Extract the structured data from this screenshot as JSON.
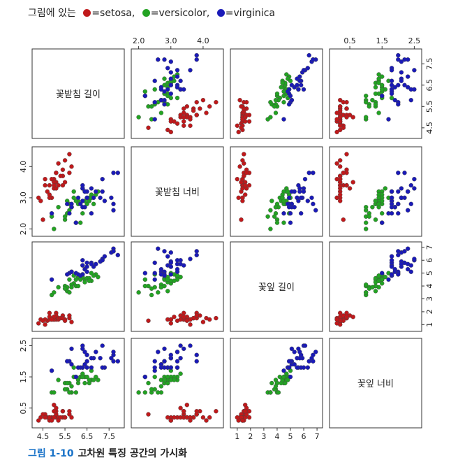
{
  "legend": {
    "prefix": "그림에 있는",
    "items": [
      {
        "label": "=setosa,",
        "color": "#c0191b"
      },
      {
        "label": "=versicolor,",
        "color": "#23a323"
      },
      {
        "label": "=virginica",
        "color": "#1a1ab8"
      }
    ]
  },
  "caption": {
    "number": "그림 1-10",
    "text": "고차원 특징 공간의 가시화"
  },
  "chart_data": {
    "type": "scatter",
    "title": "",
    "variables": [
      {
        "name": "꽃받침 길이",
        "range": [
          4.2,
          8.0
        ],
        "ticks": [
          "4.5",
          "5.5",
          "6.5",
          "7.5"
        ]
      },
      {
        "name": "꽃받침 너비",
        "range": [
          1.9,
          4.5
        ],
        "ticks": [
          "2.0",
          "3.0",
          "4.0"
        ]
      },
      {
        "name": "꽃잎 길이",
        "range": [
          0.8,
          7.1
        ],
        "ticks": [
          "1",
          "2",
          "3",
          "4",
          "5",
          "6",
          "7"
        ]
      },
      {
        "name": "꽃잎 너비",
        "range": [
          0.0,
          2.6
        ],
        "ticks": [
          "0.5",
          "1.5",
          "2.5"
        ]
      }
    ],
    "series": [
      {
        "name": "setosa",
        "color": "#c0191b",
        "points": [
          [
            5.1,
            3.5,
            1.4,
            0.2
          ],
          [
            4.9,
            3.0,
            1.4,
            0.2
          ],
          [
            4.7,
            3.2,
            1.3,
            0.2
          ],
          [
            5.0,
            3.6,
            1.4,
            0.2
          ],
          [
            5.4,
            3.9,
            1.7,
            0.4
          ],
          [
            4.6,
            3.4,
            1.4,
            0.3
          ],
          [
            4.4,
            2.9,
            1.4,
            0.2
          ],
          [
            5.4,
            3.7,
            1.5,
            0.2
          ],
          [
            4.8,
            3.0,
            1.4,
            0.1
          ],
          [
            5.8,
            4.0,
            1.2,
            0.2
          ],
          [
            5.7,
            4.4,
            1.5,
            0.4
          ],
          [
            5.1,
            3.8,
            1.5,
            0.3
          ],
          [
            5.2,
            3.4,
            1.4,
            0.2
          ],
          [
            5.2,
            4.1,
            1.5,
            0.1
          ],
          [
            5.5,
            4.2,
            1.4,
            0.2
          ],
          [
            4.5,
            2.3,
            1.3,
            0.3
          ],
          [
            5.3,
            3.7,
            1.5,
            0.2
          ],
          [
            5.0,
            3.3,
            1.4,
            0.2
          ],
          [
            4.8,
            3.4,
            1.9,
            0.2
          ],
          [
            5.1,
            3.8,
            1.9,
            0.4
          ],
          [
            4.3,
            3.0,
            1.1,
            0.1
          ],
          [
            5.0,
            3.5,
            1.6,
            0.6
          ],
          [
            4.6,
            3.6,
            1.0,
            0.2
          ],
          [
            5.1,
            3.3,
            1.7,
            0.5
          ],
          [
            4.8,
            3.1,
            1.6,
            0.2
          ],
          [
            5.7,
            3.8,
            1.7,
            0.3
          ],
          [
            5.4,
            3.4,
            1.5,
            0.4
          ],
          [
            5.0,
            3.4,
            1.6,
            0.4
          ],
          [
            5.5,
            3.5,
            1.3,
            0.2
          ],
          [
            4.9,
            3.6,
            1.4,
            0.1
          ]
        ]
      },
      {
        "name": "versicolor",
        "color": "#23a323",
        "points": [
          [
            7.0,
            3.2,
            4.7,
            1.4
          ],
          [
            6.4,
            3.2,
            4.5,
            1.5
          ],
          [
            6.9,
            3.1,
            4.9,
            1.5
          ],
          [
            5.5,
            2.3,
            4.0,
            1.3
          ],
          [
            6.5,
            2.8,
            4.6,
            1.5
          ],
          [
            5.7,
            2.8,
            4.5,
            1.3
          ],
          [
            6.3,
            3.3,
            4.7,
            1.6
          ],
          [
            4.9,
            2.4,
            3.3,
            1.0
          ],
          [
            6.6,
            2.9,
            4.6,
            1.3
          ],
          [
            5.2,
            2.7,
            3.9,
            1.4
          ],
          [
            5.0,
            2.0,
            3.5,
            1.0
          ],
          [
            5.9,
            3.0,
            4.2,
            1.5
          ],
          [
            6.0,
            2.2,
            4.0,
            1.0
          ],
          [
            6.1,
            2.9,
            4.7,
            1.4
          ],
          [
            5.6,
            2.9,
            3.6,
            1.3
          ],
          [
            6.7,
            3.1,
            4.4,
            1.4
          ],
          [
            5.8,
            2.7,
            4.1,
            1.0
          ],
          [
            6.2,
            2.2,
            4.5,
            1.5
          ],
          [
            5.6,
            2.5,
            3.9,
            1.1
          ],
          [
            5.9,
            3.2,
            4.8,
            1.8
          ],
          [
            6.1,
            2.8,
            4.0,
            1.3
          ],
          [
            6.3,
            2.5,
            4.9,
            1.5
          ],
          [
            6.4,
            2.9,
            4.3,
            1.3
          ],
          [
            6.6,
            3.0,
            4.4,
            1.4
          ],
          [
            6.8,
            2.8,
            4.8,
            1.4
          ],
          [
            6.7,
            3.0,
            5.0,
            1.7
          ],
          [
            6.0,
            2.9,
            4.5,
            1.5
          ],
          [
            5.7,
            2.6,
            3.5,
            1.0
          ],
          [
            5.5,
            2.4,
            3.8,
            1.1
          ],
          [
            5.8,
            2.7,
            3.9,
            1.2
          ]
        ]
      },
      {
        "name": "virginica",
        "color": "#1a1ab8",
        "points": [
          [
            6.3,
            3.3,
            6.0,
            2.5
          ],
          [
            5.8,
            2.7,
            5.1,
            1.9
          ],
          [
            7.1,
            3.0,
            5.9,
            2.1
          ],
          [
            6.3,
            2.9,
            5.6,
            1.8
          ],
          [
            6.5,
            3.0,
            5.8,
            2.2
          ],
          [
            7.6,
            3.0,
            6.6,
            2.1
          ],
          [
            4.9,
            2.5,
            4.5,
            1.7
          ],
          [
            7.3,
            2.9,
            6.3,
            1.8
          ],
          [
            6.7,
            2.5,
            5.8,
            1.8
          ],
          [
            7.2,
            3.6,
            6.1,
            2.5
          ],
          [
            6.5,
            3.2,
            5.1,
            2.0
          ],
          [
            6.4,
            2.7,
            5.3,
            1.9
          ],
          [
            6.8,
            3.0,
            5.5,
            2.1
          ],
          [
            5.7,
            2.5,
            5.0,
            2.0
          ],
          [
            5.8,
            2.8,
            5.1,
            2.4
          ],
          [
            6.4,
            3.2,
            5.3,
            2.3
          ],
          [
            6.5,
            3.0,
            5.5,
            1.8
          ],
          [
            7.7,
            3.8,
            6.7,
            2.2
          ],
          [
            7.7,
            2.6,
            6.9,
            2.3
          ],
          [
            6.0,
            2.2,
            5.0,
            1.5
          ],
          [
            6.9,
            3.2,
            5.7,
            2.3
          ],
          [
            5.6,
            2.8,
            4.9,
            2.0
          ],
          [
            7.7,
            2.8,
            6.7,
            2.0
          ],
          [
            6.3,
            2.7,
            4.9,
            1.8
          ],
          [
            6.7,
            3.3,
            5.7,
            2.1
          ],
          [
            7.2,
            3.2,
            6.0,
            1.8
          ],
          [
            6.2,
            2.8,
            4.8,
            1.8
          ],
          [
            6.1,
            3.0,
            4.9,
            1.8
          ],
          [
            7.9,
            3.8,
            6.4,
            2.0
          ],
          [
            6.3,
            3.4,
            5.6,
            2.4
          ]
        ]
      }
    ]
  }
}
